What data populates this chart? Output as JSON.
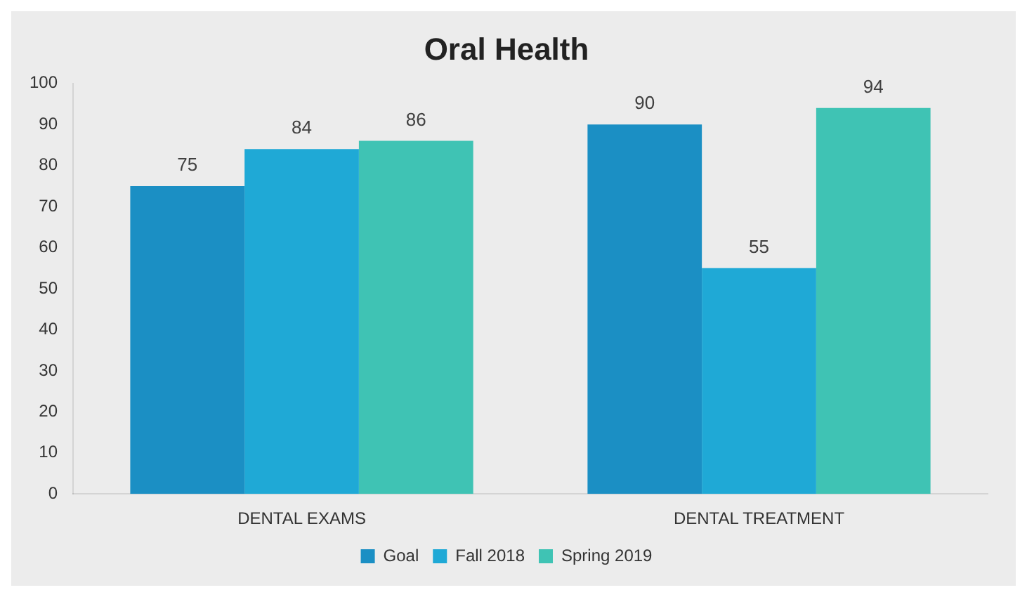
{
  "chart_data": {
    "type": "bar",
    "title": "Oral Health",
    "categories": [
      "DENTAL EXAMS",
      "DENTAL TREATMENT"
    ],
    "series": [
      {
        "name": "Goal",
        "color": "#1b8fc4",
        "values": [
          75,
          90
        ]
      },
      {
        "name": "Fall 2018",
        "color": "#1fa9d6",
        "values": [
          84,
          55
        ]
      },
      {
        "name": "Spring 2019",
        "color": "#3fc3b4",
        "values": [
          86,
          94
        ]
      }
    ],
    "ylim": [
      0,
      100
    ],
    "yticks": [
      0,
      10,
      20,
      30,
      40,
      50,
      60,
      70,
      80,
      90,
      100
    ],
    "grid": false,
    "legend": "bottom",
    "data_labels": true
  }
}
